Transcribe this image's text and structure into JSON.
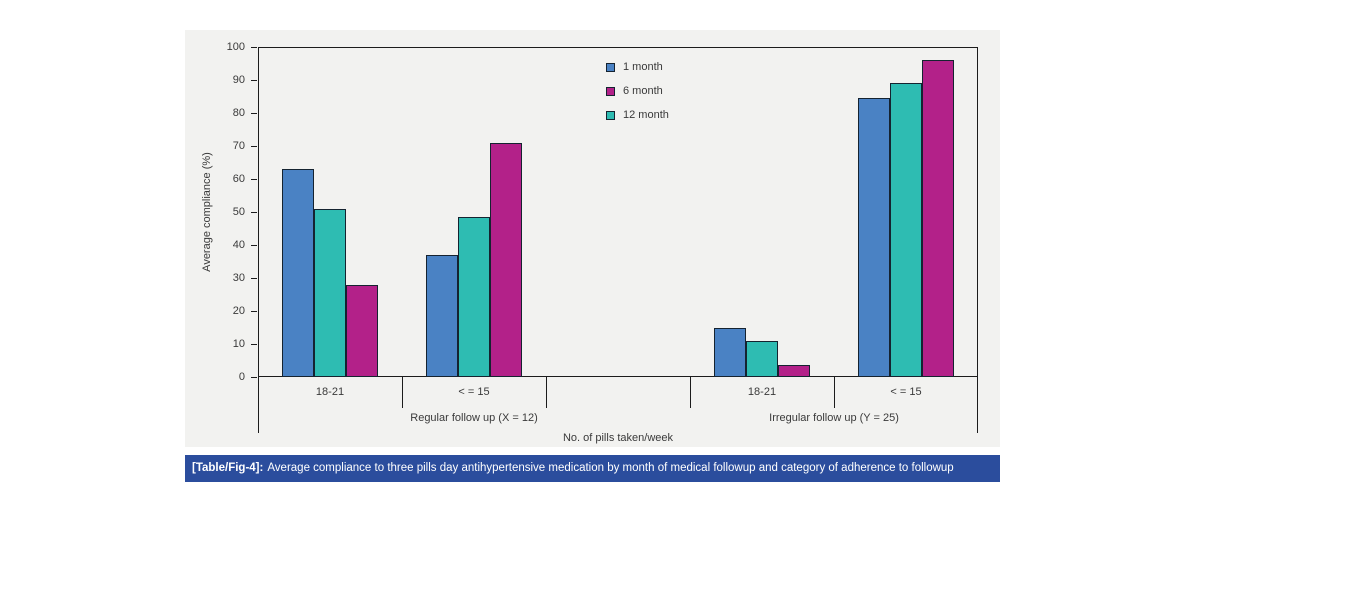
{
  "colors": {
    "panel_bg": "#f2f2f0",
    "axis_line": "#1c1c1c",
    "bar_outline": "#152330",
    "caption_bg": "#2b4d9d",
    "caption_text": "#ffffff"
  },
  "chart_data": {
    "type": "bar",
    "title": "",
    "ylabel": "Average compliance (%)",
    "xlabel": "No. of pills taken/week",
    "ylim": [
      0,
      100
    ],
    "yticks": [
      0,
      10,
      20,
      30,
      40,
      50,
      60,
      70,
      80,
      90,
      100
    ],
    "grid": false,
    "legend_position": "top-center-inside",
    "series": [
      {
        "name": "1 month",
        "color": "#4a82c4",
        "values": [
          63,
          37,
          15,
          84.5
        ]
      },
      {
        "name": "6 month",
        "color": "#b32189",
        "values": [
          28,
          71,
          3.5,
          96
        ]
      },
      {
        "name": "12 month",
        "color": "#2ebcb2",
        "values": [
          51,
          48.5,
          11,
          89
        ]
      }
    ],
    "bar_display_order": [
      0,
      2,
      1
    ],
    "categories": [
      "18-21",
      "< = 15",
      "18-21",
      "< = 15"
    ],
    "category_groups": [
      {
        "label": "Regular follow up (X = 12)"
      },
      {
        "label": "Irregular follow up (Y = 25)"
      }
    ],
    "layout": {
      "n_slots": 5,
      "group_slots": [
        0,
        1,
        3,
        4
      ],
      "category_slot_spans": [
        [
          0,
          3
        ],
        [
          3,
          5
        ]
      ]
    }
  },
  "caption": {
    "tag": "[Table/Fig-4]:",
    "text": "Average compliance to three pills day antihypertensive medication by month of medical followup and category of adherence to followup"
  }
}
